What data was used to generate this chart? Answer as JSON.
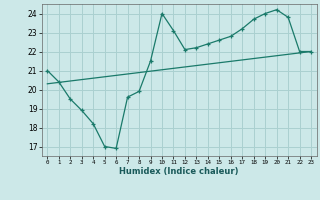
{
  "xlabel": "Humidex (Indice chaleur)",
  "bg_color": "#cce8e8",
  "grid_color": "#aad0d0",
  "line_color": "#1a7a6a",
  "xlim": [
    -0.5,
    23.5
  ],
  "ylim": [
    16.5,
    24.5
  ],
  "xticks": [
    0,
    1,
    2,
    3,
    4,
    5,
    6,
    7,
    8,
    9,
    10,
    11,
    12,
    13,
    14,
    15,
    16,
    17,
    18,
    19,
    20,
    21,
    22,
    23
  ],
  "yticks": [
    17,
    18,
    19,
    20,
    21,
    22,
    23,
    24
  ],
  "line1_x": [
    0,
    1,
    2,
    3,
    4,
    5,
    6,
    7,
    8,
    9,
    10,
    11,
    12,
    13,
    14,
    15,
    16,
    17,
    18,
    19,
    20,
    21,
    22,
    23
  ],
  "line1_y": [
    21.0,
    20.4,
    19.5,
    18.9,
    18.2,
    17.0,
    16.9,
    19.6,
    19.9,
    21.5,
    24.0,
    23.1,
    22.1,
    22.2,
    22.4,
    22.6,
    22.8,
    23.2,
    23.7,
    24.0,
    24.2,
    23.8,
    22.0,
    22.0
  ],
  "line2_x": [
    0,
    23
  ],
  "line2_y": [
    20.3,
    22.0
  ]
}
